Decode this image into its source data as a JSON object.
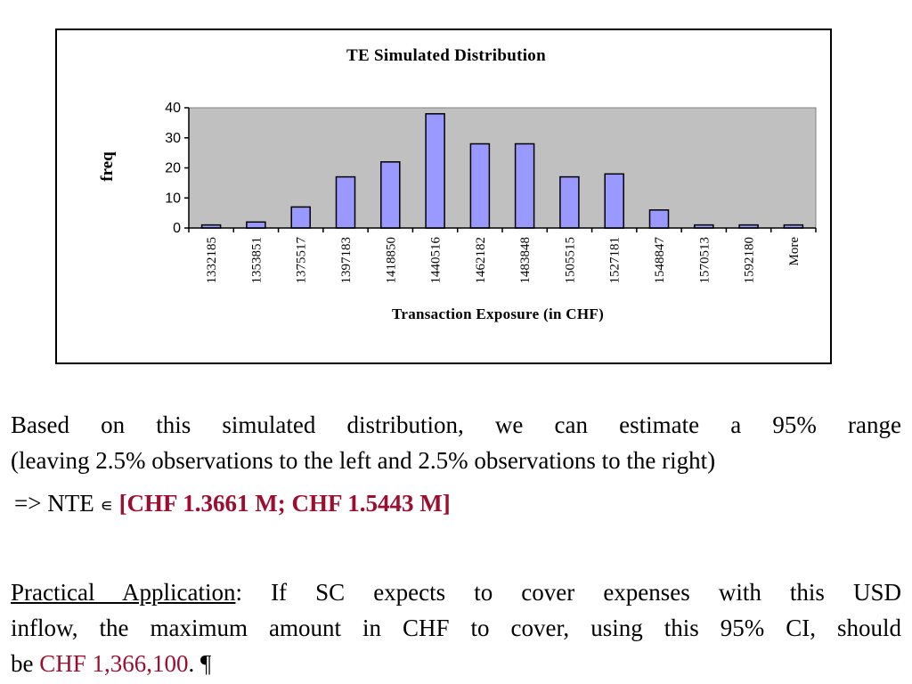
{
  "chart_data": {
    "type": "bar",
    "title": "TE Simulated Distribution",
    "xlabel": "Transaction Exposure (in CHF)",
    "ylabel": "freq",
    "categories": [
      "1332185",
      "1353851",
      "1375517",
      "1397183",
      "1418850",
      "1440516",
      "1462182",
      "1483848",
      "1505515",
      "1527181",
      "1548847",
      "1570513",
      "1592180",
      "More"
    ],
    "values": [
      1,
      2,
      7,
      17,
      22,
      38,
      28,
      28,
      17,
      18,
      6,
      1,
      1,
      1
    ],
    "yticks": [
      "0",
      "10",
      "20",
      "30",
      "40"
    ],
    "ylim": [
      0,
      40
    ],
    "bar_color": "#9999ff",
    "plot_background": "#c0c0c0",
    "grid": false,
    "legend": "none"
  },
  "text": {
    "para1_line1": "Based on this simulated distribution, we can estimate a 95% range",
    "para1_line2": "(leaving 2.5% observations to the left and 2.5% observations to the right)",
    "result_prefix": "=> NTE",
    "result_symbol": "∊",
    "result_value": "[CHF 1.3661 M; CHF 1.5443 M]",
    "practical_label": "Practical Application",
    "practical_line1_rest": ": If SC expects to cover expenses with this USD",
    "practical_line2": "inflow, the maximum amount in CHF to cover, using this 95% CI, should",
    "practical_line3_prefix": "be",
    "practical_amount": "CHF 1,366,100",
    "practical_end": ". ¶"
  },
  "colors": {
    "highlight": "#9b0e2f"
  }
}
